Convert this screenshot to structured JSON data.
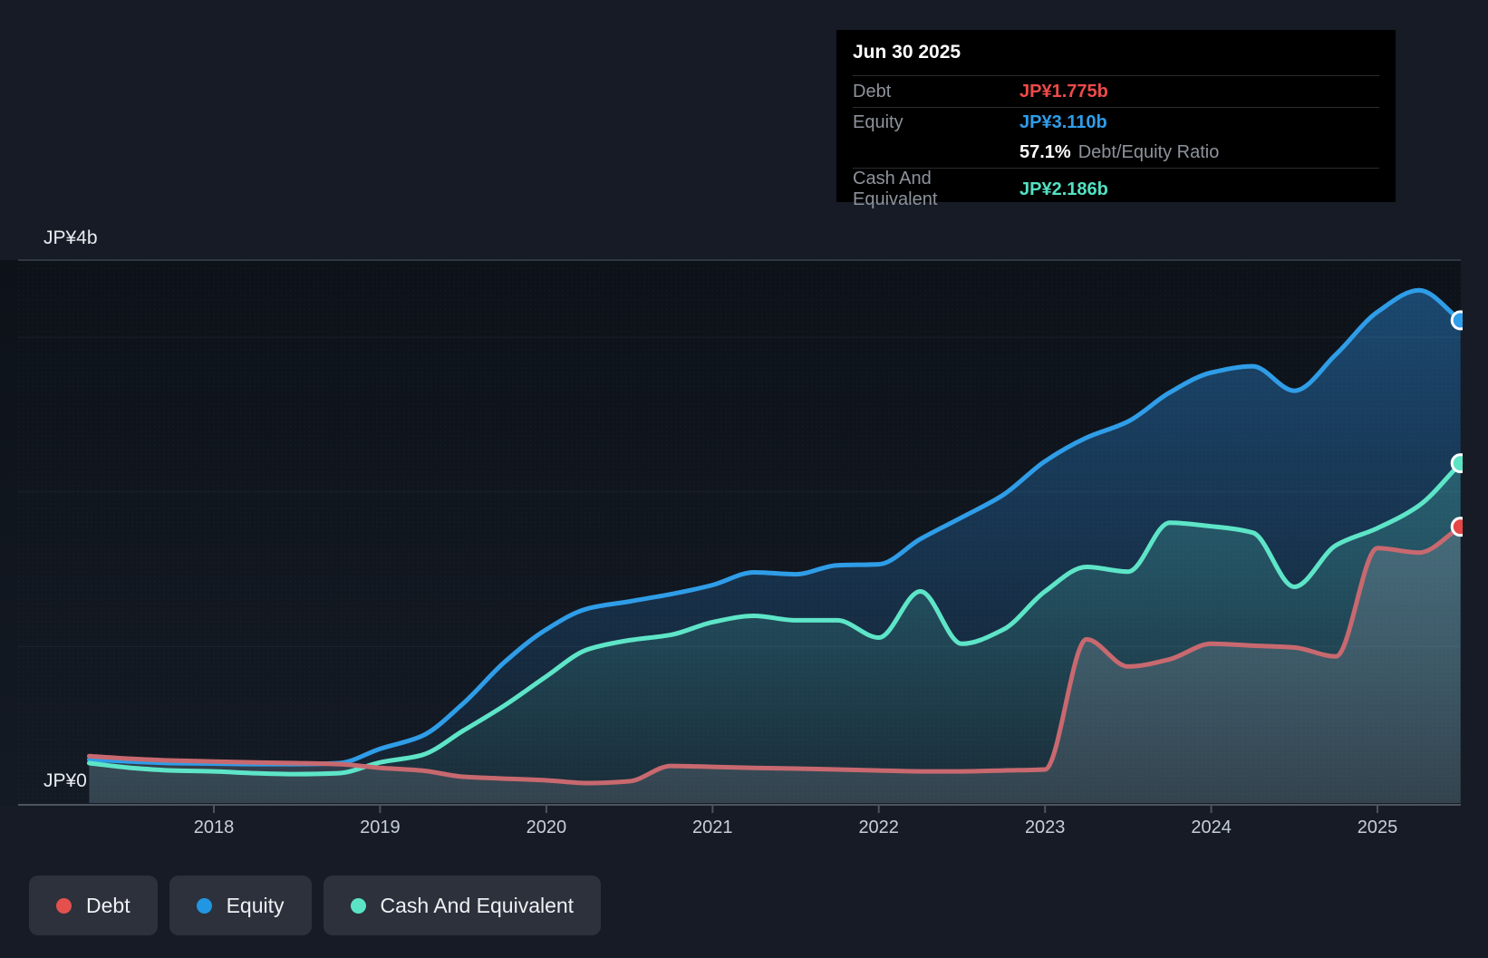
{
  "page": {
    "background": "#161b25",
    "plot_top_color": "#0d1219",
    "plot_bottom_color": "#141a24"
  },
  "tooltip": {
    "date": "Jun 30 2025",
    "debt_label": "Debt",
    "debt_value": "JP¥1.775b",
    "equity_label": "Equity",
    "equity_value": "JP¥3.110b",
    "ratio_value": "57.1%",
    "ratio_label": "Debt/Equity Ratio",
    "cash_label": "Cash And Equivalent",
    "cash_value": "JP¥2.186b",
    "colors": {
      "debt": "#ef4a49",
      "equity": "#2f9de8",
      "cash": "#53e1c2"
    }
  },
  "axis": {
    "y_top_label": "JP¥4b",
    "y_zero_label": "JP¥0"
  },
  "legend": {
    "debt": "Debt",
    "equity": "Equity",
    "cash": "Cash And Equivalent",
    "dot_colors": {
      "debt": "#e4504e",
      "equity": "#2196e3",
      "cash": "#5ce3c6"
    }
  },
  "chart_data": {
    "type": "area",
    "x_axis": {
      "start_year": 2017.25,
      "step_years": 0.25,
      "tick_years": [
        2018,
        2019,
        2020,
        2021,
        2022,
        2023,
        2024,
        2025
      ]
    },
    "y_axis": {
      "min": 0,
      "top_label": "JP¥4b",
      "zero_label": "JP¥0",
      "unit": "JP¥ billions",
      "gridline_values": [
        1,
        2,
        3
      ]
    },
    "last_point": {
      "date": "Jun 30 2025",
      "debt": 1.775,
      "equity": 3.11,
      "cash": 2.186,
      "debt_equity_ratio_pct": 57.1
    },
    "series": [
      {
        "name": "Equity",
        "line_color": "#2f9de8",
        "marker_color": "#2f9de8",
        "fill_top": "rgba(41,130,205,0.50)",
        "fill_bottom": "rgba(41,130,205,0.06)",
        "values": [
          0.269,
          0.257,
          0.246,
          0.243,
          0.24,
          0.24,
          0.246,
          0.339,
          0.421,
          0.632,
          0.901,
          1.111,
          1.246,
          1.292,
          1.339,
          1.398,
          1.48,
          1.468,
          1.526,
          1.532,
          1.696,
          1.836,
          1.982,
          2.199,
          2.351,
          2.456,
          2.643,
          2.772,
          2.813,
          2.655,
          2.889,
          3.164,
          3.304,
          3.11
        ]
      },
      {
        "name": "Cash And Equivalent",
        "line_color": "#5ee5c8",
        "marker_color": "#5ce3c6",
        "fill_top": "rgba(94,229,200,0.32)",
        "fill_bottom": "rgba(94,229,200,0.06)",
        "values": [
          0.246,
          0.216,
          0.199,
          0.193,
          0.181,
          0.175,
          0.181,
          0.251,
          0.298,
          0.456,
          0.62,
          0.807,
          0.982,
          1.041,
          1.076,
          1.158,
          1.199,
          1.17,
          1.17,
          1.058,
          1.357,
          1.018,
          1.111,
          1.357,
          1.515,
          1.485,
          1.801,
          1.778,
          1.737,
          1.386,
          1.655,
          1.766,
          1.912,
          2.186
        ]
      },
      {
        "name": "Debt",
        "line_color": "#c8696f",
        "marker_color": "#e64646",
        "fill_top": "rgba(155,160,172,0.36)",
        "fill_bottom": "rgba(155,160,172,0.20)",
        "values": [
          0.292,
          0.275,
          0.263,
          0.257,
          0.251,
          0.246,
          0.24,
          0.216,
          0.199,
          0.158,
          0.146,
          0.135,
          0.117,
          0.129,
          0.228,
          0.222,
          0.216,
          0.211,
          0.205,
          0.199,
          0.193,
          0.193,
          0.199,
          0.205,
          1.047,
          0.871,
          0.918,
          1.018,
          1.006,
          0.994,
          0.936,
          1.637,
          1.608,
          1.775
        ]
      }
    ]
  }
}
